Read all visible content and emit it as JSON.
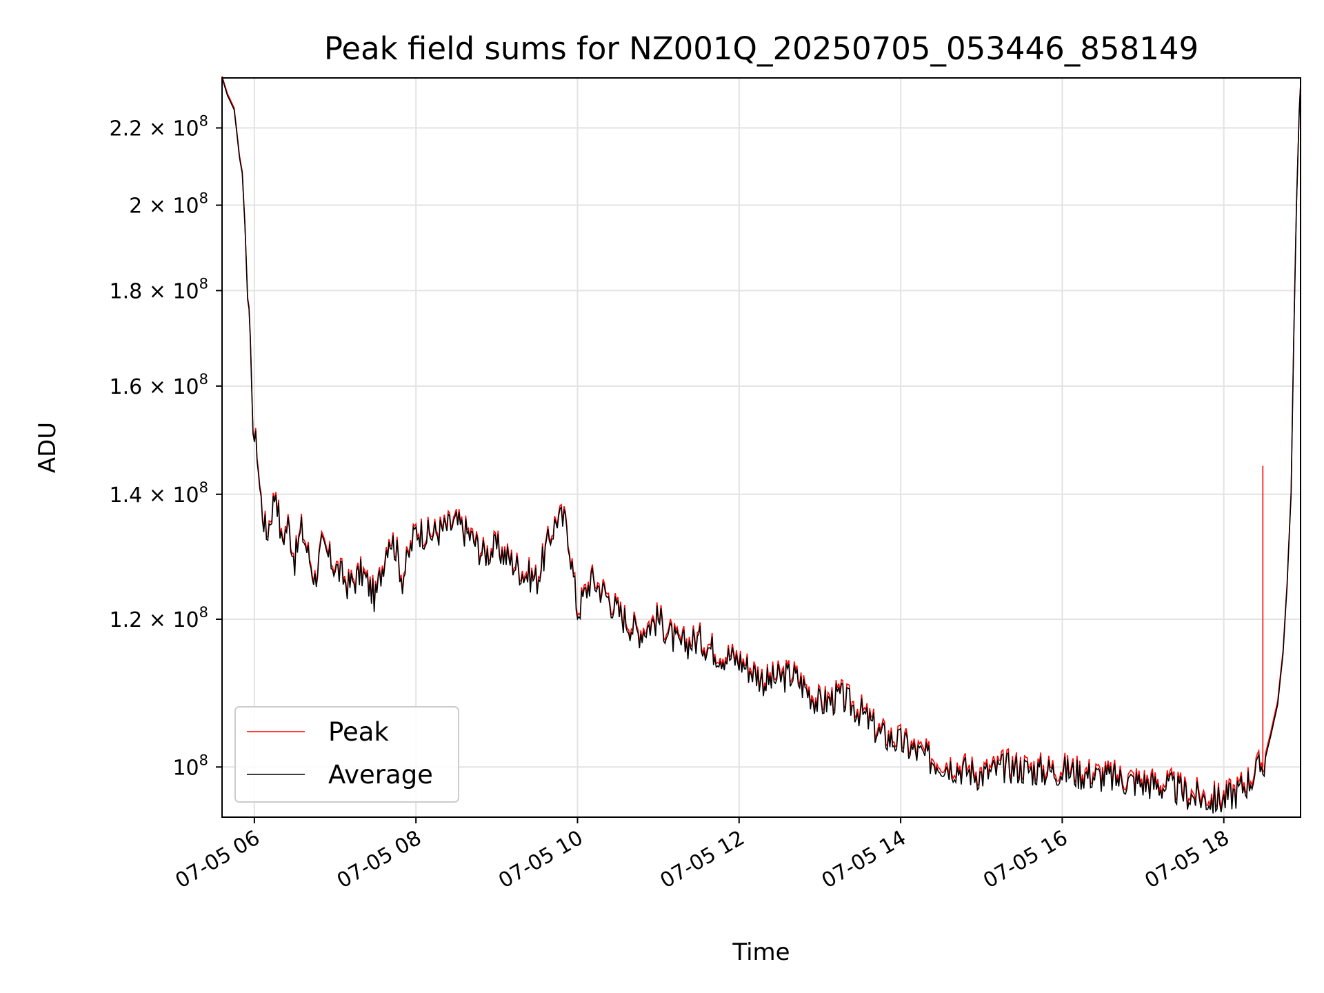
{
  "chart_data": {
    "type": "line",
    "title": "Peak field sums for NZ001Q_20250705_053446_858149",
    "xlabel": "Time",
    "ylabel": "ADU",
    "y_scale": "log",
    "xlim": [
      "2025-07-05 05:36",
      "2025-07-05 18:57"
    ],
    "ylim": [
      94000000,
      234000000
    ],
    "grid": true,
    "legend_position": "lower-left",
    "x_ticks": [
      {
        "value": "2025-07-05 06:00",
        "label": "07-05 06"
      },
      {
        "value": "2025-07-05 08:00",
        "label": "07-05 08"
      },
      {
        "value": "2025-07-05 10:00",
        "label": "07-05 10"
      },
      {
        "value": "2025-07-05 12:00",
        "label": "07-05 12"
      },
      {
        "value": "2025-07-05 14:00",
        "label": "07-05 14"
      },
      {
        "value": "2025-07-05 16:00",
        "label": "07-05 16"
      },
      {
        "value": "2025-07-05 18:00",
        "label": "07-05 18"
      }
    ],
    "y_ticks": [
      {
        "value": 100000000,
        "mantissa": "",
        "exponent": "8"
      },
      {
        "value": 120000000,
        "mantissa": "1.2",
        "exponent": "8"
      },
      {
        "value": 140000000,
        "mantissa": "1.4",
        "exponent": "8"
      },
      {
        "value": 160000000,
        "mantissa": "1.6",
        "exponent": "8"
      },
      {
        "value": 180000000,
        "mantissa": "1.8",
        "exponent": "8"
      },
      {
        "value": 200000000,
        "mantissa": "2",
        "exponent": "8"
      },
      {
        "value": 220000000,
        "mantissa": "2.2",
        "exponent": "8"
      }
    ],
    "x": [
      "2025-07-05 05:36",
      "2025-07-05 05:40",
      "2025-07-05 05:45",
      "2025-07-05 05:49",
      "2025-07-05 05:51",
      "2025-07-05 05:53",
      "2025-07-05 05:55",
      "2025-07-05 05:56",
      "2025-07-05 05:57",
      "2025-07-05 05:58",
      "2025-07-05 06:00",
      "2025-07-05 06:02",
      "2025-07-05 06:04",
      "2025-07-05 06:06",
      "2025-07-05 06:09",
      "2025-07-05 06:12",
      "2025-07-05 06:16",
      "2025-07-05 06:20",
      "2025-07-05 06:25",
      "2025-07-05 06:30",
      "2025-07-05 06:35",
      "2025-07-05 06:40",
      "2025-07-05 06:45",
      "2025-07-05 06:50",
      "2025-07-05 07:00",
      "2025-07-05 07:10",
      "2025-07-05 07:20",
      "2025-07-05 07:30",
      "2025-07-05 07:40",
      "2025-07-05 07:45",
      "2025-07-05 07:50",
      "2025-07-05 08:00",
      "2025-07-05 08:10",
      "2025-07-05 08:20",
      "2025-07-05 08:30",
      "2025-07-05 08:40",
      "2025-07-05 08:50",
      "2025-07-05 09:00",
      "2025-07-05 09:10",
      "2025-07-05 09:20",
      "2025-07-05 09:30",
      "2025-07-05 09:40",
      "2025-07-05 09:45",
      "2025-07-05 09:52",
      "2025-07-05 10:00",
      "2025-07-05 10:10",
      "2025-07-05 10:20",
      "2025-07-05 10:30",
      "2025-07-05 10:45",
      "2025-07-05 11:00",
      "2025-07-05 11:15",
      "2025-07-05 11:30",
      "2025-07-05 11:45",
      "2025-07-05 12:00",
      "2025-07-05 12:20",
      "2025-07-05 12:40",
      "2025-07-05 13:00",
      "2025-07-05 13:15",
      "2025-07-05 13:30",
      "2025-07-05 13:45",
      "2025-07-05 14:00",
      "2025-07-05 14:20",
      "2025-07-05 14:40",
      "2025-07-05 15:00",
      "2025-07-05 15:20",
      "2025-07-05 15:40",
      "2025-07-05 16:00",
      "2025-07-05 16:20",
      "2025-07-05 16:40",
      "2025-07-05 17:00",
      "2025-07-05 17:20",
      "2025-07-05 17:35",
      "2025-07-05 17:50",
      "2025-07-05 18:00",
      "2025-07-05 18:10",
      "2025-07-05 18:20",
      "2025-07-05 18:30",
      "2025-07-05 18:35",
      "2025-07-05 18:40",
      "2025-07-05 18:44",
      "2025-07-05 18:47",
      "2025-07-05 18:50",
      "2025-07-05 18:52",
      "2025-07-05 18:54",
      "2025-07-05 18:56",
      "2025-07-05 18:57"
    ],
    "series": [
      {
        "name": "Average",
        "color": "#000000",
        "values": [
          234000000,
          229000000,
          225000000,
          212000000,
          208000000,
          195000000,
          178000000,
          176000000,
          167000000,
          157000000,
          150000000,
          148000000,
          141000000,
          137000000,
          133000000,
          136000000,
          141000000,
          132000000,
          135000000,
          129000000,
          134000000,
          130000000,
          126000000,
          131000000,
          128000000,
          125000000,
          127000000,
          123000000,
          133000000,
          131000000,
          126000000,
          134000000,
          133000000,
          134000000,
          135000000,
          133000000,
          130000000,
          131000000,
          129000000,
          127000000,
          126000000,
          133000000,
          136000000,
          135000000,
          121000000,
          126000000,
          124000000,
          121000000,
          118000000,
          120000000,
          116000000,
          117000000,
          115000000,
          114000000,
          111000000,
          112000000,
          108000000,
          109000000,
          107000000,
          104000000,
          103000000,
          101000000,
          100000000,
          99000000,
          100000000,
          99500000,
          99500000,
          99000000,
          98500000,
          98000000,
          97500000,
          96500000,
          96000000,
          96000000,
          97000000,
          98500000,
          100500000,
          104000000,
          108000000,
          115000000,
          125000000,
          140000000,
          170000000,
          200000000,
          224000000,
          232000000
        ]
      },
      {
        "name": "Peak",
        "color": "#ff0000",
        "values": [
          234500000,
          229500000,
          225500000,
          212500000,
          208500000,
          195500000,
          178500000,
          176500000,
          167500000,
          157500000,
          150500000,
          148500000,
          141500000,
          137500000,
          133500000,
          136500000,
          141500000,
          132500000,
          135500000,
          129500000,
          134500000,
          130500000,
          126500000,
          131500000,
          128500000,
          125500000,
          127500000,
          123500000,
          133500000,
          131500000,
          126500000,
          134500000,
          133500000,
          134500000,
          135500000,
          133500000,
          130500000,
          131500000,
          129500000,
          127500000,
          126500000,
          133500000,
          136500000,
          135500000,
          121500000,
          126500000,
          124500000,
          121500000,
          118500000,
          120500000,
          116500000,
          117500000,
          115500000,
          114500000,
          111500000,
          112500000,
          108500000,
          109500000,
          107500000,
          104500000,
          103500000,
          101500000,
          100500000,
          99500000,
          100500000,
          100000000,
          100000000,
          99500000,
          99000000,
          98500000,
          98000000,
          97000000,
          96500000,
          96500000,
          97500000,
          99000000,
          101000000,
          104500000,
          108500000,
          115500000,
          125500000,
          140500000,
          170500000,
          200500000,
          224500000,
          232500000
        ]
      }
    ],
    "annotations": [
      {
        "series": "Peak",
        "x": "2025-07-05 18:29",
        "y": 145000000,
        "note_kind": "spike"
      }
    ]
  }
}
